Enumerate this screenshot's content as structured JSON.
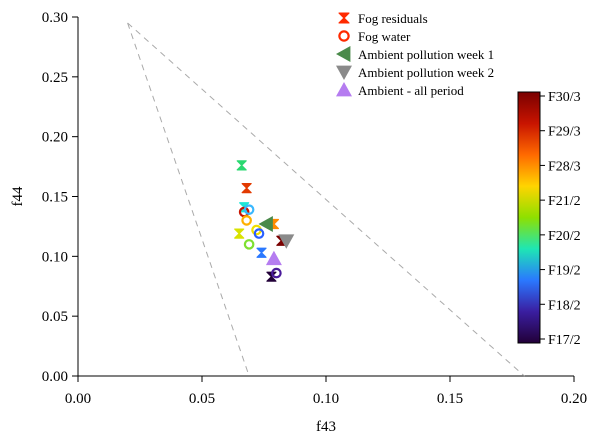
{
  "chart_data": {
    "type": "scatter",
    "title": "",
    "xlabel": "f43",
    "ylabel": "f44",
    "xlim": [
      0.0,
      0.2
    ],
    "ylim": [
      0.0,
      0.3
    ],
    "x_ticks": [
      "0.00",
      "0.05",
      "0.10",
      "0.15",
      "0.20"
    ],
    "y_ticks": [
      "0.00",
      "0.05",
      "0.10",
      "0.15",
      "0.20",
      "0.25",
      "0.30"
    ],
    "x_tick_values": [
      0.0,
      0.05,
      0.1,
      0.15,
      0.2
    ],
    "y_tick_values": [
      0.0,
      0.05,
      0.1,
      0.15,
      0.2,
      0.25,
      0.3
    ],
    "grid": false,
    "triangle": {
      "style": "dashed",
      "color": "#aaaaaa",
      "vertices": [
        [
          0.02,
          0.295
        ],
        [
          0.069,
          0.0
        ],
        [
          0.18,
          0.0
        ]
      ]
    },
    "legend_placement": "top-right",
    "legend": [
      {
        "label": "Fog residuals",
        "marker": "hourglass",
        "color": "#ff2a00"
      },
      {
        "label": "Fog water",
        "marker": "circle-open",
        "color": "#ff2a00"
      },
      {
        "label": "Ambient pollution week 1",
        "marker": "triangle-left",
        "color": "#4a8a4a"
      },
      {
        "label": "Ambient pollution week 2",
        "marker": "triangle-down",
        "color": "#8a8a8a"
      },
      {
        "label": "Ambient - all period",
        "marker": "triangle-up",
        "color": "#b57cf0"
      }
    ],
    "colorbar": {
      "labels": [
        "F30/3",
        "F29/3",
        "F28/3",
        "F21/2",
        "F20/2",
        "F19/2",
        "F18/2",
        "F17/2"
      ],
      "colors_top_to_bottom": [
        "#7a0000",
        "#c81400",
        "#ff6a00",
        "#ffd400",
        "#8ee000",
        "#1ee6b4",
        "#2a78ff",
        "#3a1ea0",
        "#220038"
      ]
    },
    "series": [
      {
        "name": "Fog residuals",
        "marker": "hourglass",
        "points": [
          {
            "x": 0.066,
            "y": 0.176,
            "color": "#2ad870"
          },
          {
            "x": 0.068,
            "y": 0.157,
            "color": "#e23a00"
          },
          {
            "x": 0.067,
            "y": 0.141,
            "color": "#1ee6d8"
          },
          {
            "x": 0.065,
            "y": 0.119,
            "color": "#d8e200"
          },
          {
            "x": 0.079,
            "y": 0.127,
            "color": "#ff8a00"
          },
          {
            "x": 0.082,
            "y": 0.113,
            "color": "#7a0000"
          },
          {
            "x": 0.074,
            "y": 0.103,
            "color": "#2a78ff"
          },
          {
            "x": 0.078,
            "y": 0.083,
            "color": "#220038"
          }
        ]
      },
      {
        "name": "Fog water",
        "marker": "circle-open",
        "points": [
          {
            "x": 0.067,
            "y": 0.137,
            "color": "#c81400"
          },
          {
            "x": 0.069,
            "y": 0.139,
            "color": "#3ab8ff"
          },
          {
            "x": 0.068,
            "y": 0.13,
            "color": "#ffb000"
          },
          {
            "x": 0.072,
            "y": 0.122,
            "color": "#f0e000"
          },
          {
            "x": 0.073,
            "y": 0.119,
            "color": "#2a60ff"
          },
          {
            "x": 0.069,
            "y": 0.11,
            "color": "#7ee030"
          },
          {
            "x": 0.08,
            "y": 0.086,
            "color": "#4a1a9a"
          }
        ]
      },
      {
        "name": "Ambient pollution week 1",
        "marker": "triangle-left",
        "points": [
          {
            "x": 0.076,
            "y": 0.127,
            "color": "#4a8a4a"
          }
        ]
      },
      {
        "name": "Ambient pollution week 2",
        "marker": "triangle-down",
        "points": [
          {
            "x": 0.084,
            "y": 0.113,
            "color": "#8a8a8a"
          }
        ]
      },
      {
        "name": "Ambient - all period",
        "marker": "triangle-up",
        "points": [
          {
            "x": 0.079,
            "y": 0.098,
            "color": "#b57cf0"
          }
        ]
      }
    ]
  }
}
